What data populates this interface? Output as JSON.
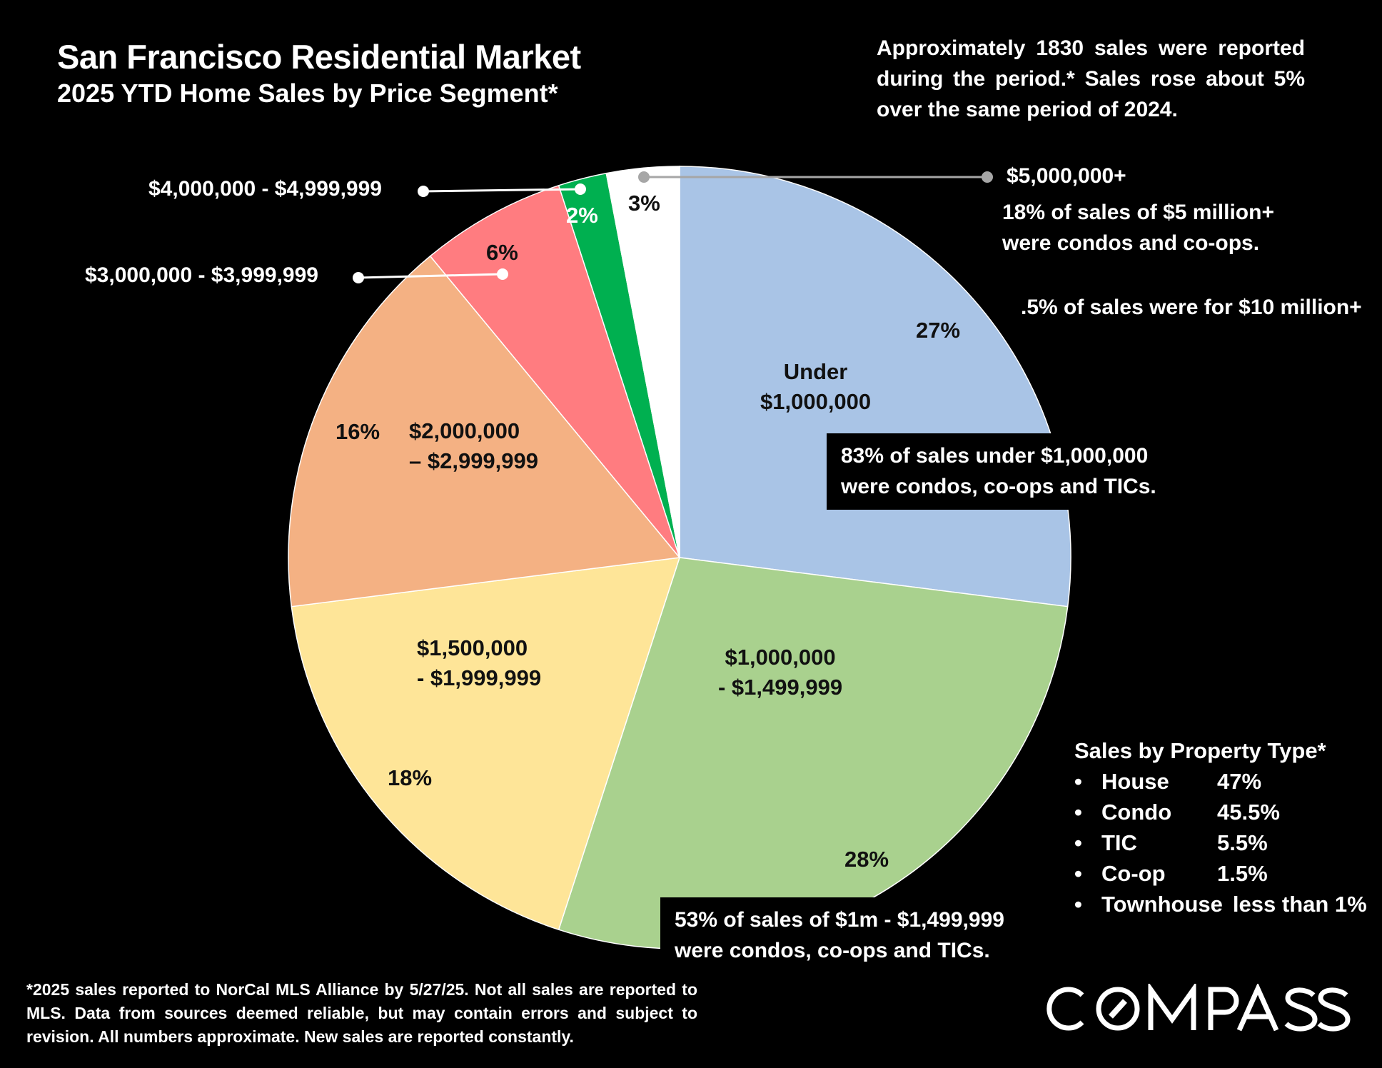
{
  "header": {
    "title": "San Francisco Residential Market",
    "subtitle": "2025 YTD Home Sales by Price Segment*"
  },
  "summary": "Approximately 1830 sales were reported during the period.* Sales rose about 5% over the same period of 2024.",
  "chart_data": {
    "type": "pie",
    "title": "2025 YTD Home Sales by Price Segment*",
    "start": "top",
    "direction": "clockwise",
    "slices": [
      {
        "category": "Under $1,000,000",
        "label_lines": [
          "Under",
          "$1,000,000"
        ],
        "value": 27,
        "value_label": "27%",
        "color": "#a9c4e6"
      },
      {
        "category": "$1,000,000 - $1,499,999",
        "label_lines": [
          "$1,000,000",
          "- $1,499,999"
        ],
        "value": 28,
        "value_label": "28%",
        "color": "#a9d18e"
      },
      {
        "category": "$1,500,000 - $1,999,999",
        "label_lines": [
          "$1,500,000",
          "- $1,999,999"
        ],
        "value": 18,
        "value_label": "18%",
        "color": "#fee598"
      },
      {
        "category": "$2,000,000 – $2,999,999",
        "label_lines": [
          "$2,000,000",
          "– $2,999,999"
        ],
        "value": 16,
        "value_label": "16%",
        "color": "#f4b183"
      },
      {
        "category": "$3,000,000 - $3,999,999",
        "label_lines": [
          "$3,000,000 - $3,999,999"
        ],
        "value": 6,
        "value_label": "6%",
        "color": "#ff7c80"
      },
      {
        "category": "$4,000,000 - $4,999,999",
        "label_lines": [
          "$4,000,000 - $4,999,999"
        ],
        "value": 2,
        "value_label": "2%",
        "color": "#00b050"
      },
      {
        "category": "$5,000,000+",
        "label_lines": [
          "$5,000,000+"
        ],
        "value": 3,
        "value_label": "3%",
        "color": "#ffffff"
      }
    ]
  },
  "annotations": {
    "five_million_note": [
      "18% of sales of $5 million+",
      "were condos and co-ops."
    ],
    "ten_million_note": ".5% of sales were for $10 million+",
    "under_one_million_note": [
      "83% of sales under $1,000,000",
      "were condos, co-ops and TICs."
    ],
    "one_million_note": [
      "53% of sales of $1m - $1,499,999",
      "were condos, co-ops and TICs."
    ]
  },
  "property_types": {
    "title": "Sales by Property Type*",
    "bullet": "•",
    "items": [
      {
        "name": "House",
        "value": "47%"
      },
      {
        "name": "Condo",
        "value": "45.5%"
      },
      {
        "name": "TIC",
        "value": "5.5%"
      },
      {
        "name": "Co-op",
        "value": "1.5%"
      },
      {
        "name": "Townhouse",
        "value": "less than 1%"
      }
    ]
  },
  "footnote": "*2025 sales reported to NorCal MLS Alliance by 5/27/25. Not all sales are reported to MLS. Data from sources deemed reliable, but may contain errors and subject to revision. All numbers approximate. New sales are reported constantly.",
  "logo": {
    "text": "COMPASS"
  }
}
